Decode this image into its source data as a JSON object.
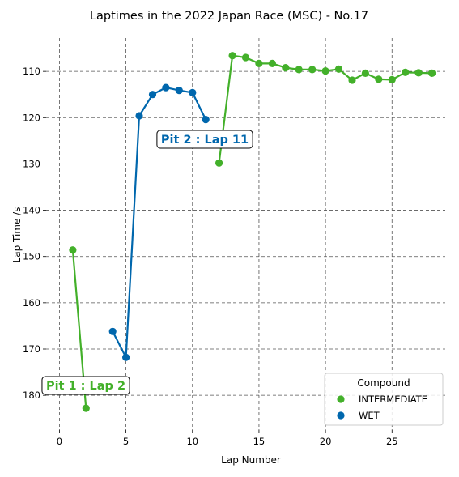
{
  "chart_data": {
    "type": "line",
    "title": "Laptimes in the 2022 Japan Race (MSC) - No.17",
    "xlabel": "Lap Number",
    "ylabel": "Lap Time /s",
    "xlim": [
      -1,
      29
    ],
    "ylim": [
      187.5,
      102.8
    ],
    "y_inverted": true,
    "grid": true,
    "x_ticks": [
      0,
      5,
      10,
      15,
      20,
      25
    ],
    "y_ticks": [
      110,
      120,
      130,
      140,
      150,
      160,
      170,
      180
    ],
    "legend": {
      "title": "Compound",
      "placement": "bottom-right"
    },
    "series": [
      {
        "name": "INTERMEDIATE",
        "color": "#43b02a",
        "segments": [
          [
            [
              1,
              148.6
            ],
            [
              2,
              182.8
            ]
          ],
          [
            [
              12,
              129.8
            ],
            [
              13,
              106.6
            ],
            [
              14,
              107.0
            ],
            [
              15,
              108.3
            ],
            [
              16,
              108.3
            ],
            [
              17,
              109.2
            ],
            [
              18,
              109.6
            ],
            [
              19,
              109.6
            ],
            [
              20,
              109.9
            ],
            [
              21,
              109.5
            ],
            [
              22,
              111.9
            ],
            [
              23,
              110.4
            ],
            [
              24,
              111.7
            ],
            [
              25,
              111.8
            ],
            [
              26,
              110.2
            ],
            [
              27,
              110.3
            ],
            [
              28,
              110.4
            ]
          ]
        ]
      },
      {
        "name": "WET",
        "color": "#0067ad",
        "segments": [
          [
            [
              4,
              166.2
            ],
            [
              5,
              171.8
            ],
            [
              6,
              119.6
            ],
            [
              7,
              115.0
            ],
            [
              8,
              113.5
            ],
            [
              9,
              114.1
            ],
            [
              10,
              114.6
            ],
            [
              11,
              120.4
            ]
          ]
        ]
      }
    ],
    "annotations": [
      {
        "text": "Pit 1 : Lap 2",
        "x": 2,
        "color": "#43b02a"
      },
      {
        "text": "Pit 2 : Lap 11",
        "x": 11,
        "color": "#0067ad"
      }
    ]
  }
}
